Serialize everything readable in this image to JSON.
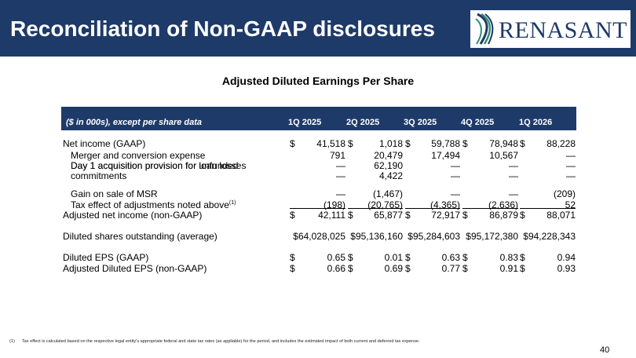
{
  "header": {
    "title": "Reconciliation of Non-GAAP disclosures",
    "logo_text": "RENASANT",
    "brand_color": "#1e3a68"
  },
  "subtitle": "Adjusted Diluted Earnings Per Share",
  "table": {
    "label_header": "($ in 000s), except per share data",
    "columns": [
      "1Q 2025",
      "2Q 2025",
      "3Q 2025",
      "4Q 2025",
      "1Q 2026"
    ],
    "rows": [
      {
        "label": "Net income (GAAP)",
        "indent": false,
        "dollar": true,
        "values": [
          "41,518",
          "1,018",
          "59,788",
          "78,948",
          "88,228"
        ]
      },
      {
        "label": "Merger and conversion expense",
        "indent": true,
        "dollar": false,
        "values": [
          "791",
          "20,479",
          "17,494",
          "10,567",
          "—"
        ]
      },
      {
        "label": "Day 1 acquisition provision for loan losses",
        "indent": true,
        "dollar": false,
        "values": [
          "—",
          "62,190",
          "—",
          "—",
          "—"
        ]
      },
      {
        "label": "Day 1 acquisition provision for unfunded",
        "label2": "commitments",
        "indent": true,
        "dollar": false,
        "values": [
          "—",
          "4,422",
          "—",
          "—",
          "—"
        ]
      },
      {
        "label": "Gain on sale of MSR",
        "indent": true,
        "dollar": false,
        "values": [
          "—",
          "(1,467)",
          "—",
          "—",
          "(209)"
        ]
      },
      {
        "label": "Tax effect of adjustments noted above",
        "sup": "(1)",
        "indent": true,
        "dollar": false,
        "values": [
          "(198)",
          "(20,765)",
          "(4,365)",
          "(2,636)",
          "52"
        ]
      },
      {
        "label": "Adjusted net income (non-GAAP)",
        "indent": false,
        "dollar": true,
        "values": [
          "42,111",
          "65,877",
          "72,917",
          "86,879",
          "88,071"
        ]
      },
      {
        "label": "Diluted shares outstanding (average)",
        "indent": false,
        "dollar": false,
        "values": [
          "$64,028,025",
          "$95,136,160",
          "$95,284,603",
          "$95,172,380",
          "$94,228,343"
        ]
      },
      {
        "label": "Diluted EPS (GAAP)",
        "indent": false,
        "dollar": true,
        "values": [
          "0.65",
          "0.01",
          "0.63",
          "0.83",
          "0.94"
        ]
      },
      {
        "label": "Adjusted Diluted EPS (non-GAAP)",
        "indent": false,
        "dollar": true,
        "values": [
          "0.66",
          "0.69",
          "0.77",
          "0.91",
          "0.93"
        ]
      }
    ],
    "dollar_sign": "$"
  },
  "footnote": {
    "mark": "(1)",
    "text": "Tax effect is calculated based on the respective legal entity's appropriate federal and state tax rates (as appliable) for the period, and includes the estimated impact of both current and deferred tax expense."
  },
  "page_number": "40"
}
